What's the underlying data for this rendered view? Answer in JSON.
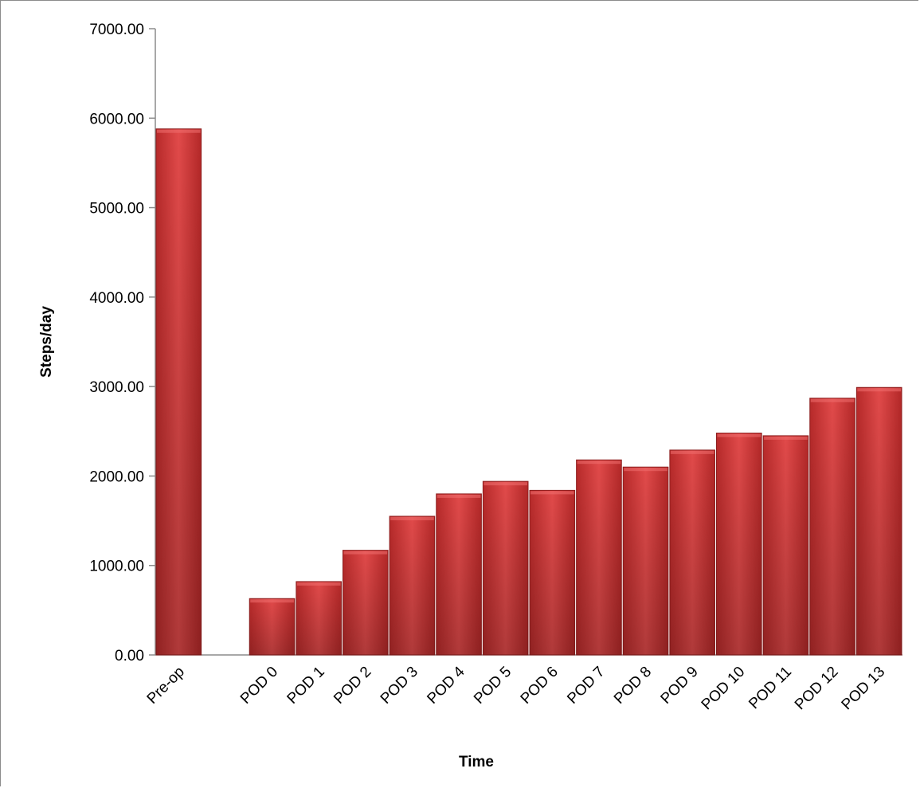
{
  "chart_data": {
    "type": "bar",
    "xlabel": "Time",
    "ylabel": "Steps/day",
    "ylim": [
      0,
      7000
    ],
    "yticks": [
      "0.00",
      "1000.00",
      "2000.00",
      "3000.00",
      "4000.00",
      "5000.00",
      "6000.00",
      "7000.00"
    ],
    "categories": [
      "Pre-op",
      "",
      "POD 0",
      "POD 1",
      "POD 2",
      "POD 3",
      "POD 4",
      "POD 5",
      "POD 6",
      "POD 7",
      "POD 8",
      "POD 9",
      "POD 10",
      "POD 11",
      "POD 12",
      "POD 13"
    ],
    "values": [
      5880,
      null,
      630,
      820,
      1170,
      1550,
      1800,
      1940,
      1840,
      2180,
      2100,
      2290,
      2480,
      2450,
      2870,
      2990
    ],
    "grid": false,
    "legend": "none",
    "bar_color": "#d43a3a"
  }
}
